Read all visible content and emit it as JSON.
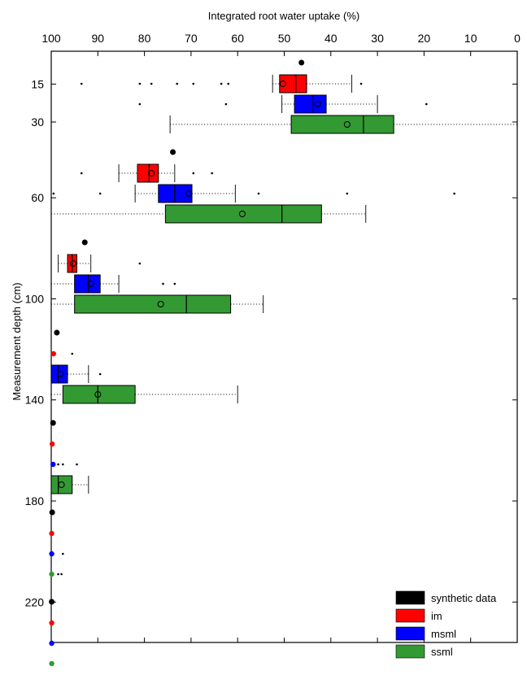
{
  "chart_data": {
    "type": "boxplot",
    "title": "",
    "xlabel": "Integrated root water uptake (%)",
    "ylabel": "Measurement depth (cm)",
    "x_axis_position": "top",
    "x_reversed": true,
    "xlim": [
      100,
      0
    ],
    "ylim": [
      236,
      2
    ],
    "x_ticks": [
      100,
      90,
      80,
      70,
      60,
      50,
      40,
      30,
      20,
      10,
      0
    ],
    "y_ticks": [
      15,
      30,
      60,
      100,
      140,
      180,
      220
    ],
    "legend_position": "bottom-right",
    "series": [
      {
        "name": "synthetic data",
        "color": "#000000"
      },
      {
        "name": "im",
        "color": "#ff0000"
      },
      {
        "name": "msml",
        "color": "#0000ff"
      },
      {
        "name": "ssml",
        "color": "#339933"
      }
    ],
    "groups": [
      {
        "depth": "15",
        "synthetic": 46.3,
        "boxes": [
          {
            "series": "im",
            "q1": 45.2,
            "median": 47.5,
            "q3": 51.0,
            "mean": 50.3,
            "whisker_low": 35.5,
            "whisker_high": 52.5,
            "outliers": [
              93.5,
              81,
              78.5,
              73,
              69.5,
              63.5,
              62,
              33.5
            ]
          },
          {
            "series": "msml",
            "q1": 41.0,
            "median": 43.8,
            "q3": 47.8,
            "mean": 42.8,
            "whisker_low": 30.0,
            "whisker_high": 50.5,
            "outliers": [
              81,
              62.5,
              19.5
            ]
          },
          {
            "series": "ssml",
            "q1": 26.5,
            "median": 33.0,
            "q3": 48.5,
            "mean": 36.5,
            "whisker_low": 0.0,
            "whisker_high": 74.5,
            "outliers": []
          }
        ]
      },
      {
        "depth": "30",
        "synthetic": 73.9,
        "boxes": [
          {
            "series": "im",
            "q1": 77.0,
            "median": 79.0,
            "q3": 81.5,
            "mean": 78.5,
            "whisker_low": 73.5,
            "whisker_high": 85.5,
            "outliers": [
              93.5,
              69.5,
              65.5
            ]
          },
          {
            "series": "msml",
            "q1": 69.8,
            "median": 73.5,
            "q3": 77.0,
            "mean": 70.5,
            "whisker_low": 60.5,
            "whisker_high": 82.0,
            "outliers": [
              99.5,
              89.5,
              55.5,
              36.5,
              13.5
            ]
          },
          {
            "series": "ssml",
            "q1": 42.0,
            "median": 50.5,
            "q3": 75.5,
            "mean": 59.0,
            "whisker_low": 32.5,
            "whisker_high": 100.0,
            "outliers": []
          }
        ]
      },
      {
        "depth": "60",
        "synthetic": 92.8,
        "boxes": [
          {
            "series": "im",
            "q1": 94.5,
            "median": 95.5,
            "q3": 96.5,
            "mean": 95.3,
            "whisker_low": 91.5,
            "whisker_high": 98.5,
            "outliers": [
              81
            ]
          },
          {
            "series": "msml",
            "q1": 89.5,
            "median": 92.0,
            "q3": 95.0,
            "mean": 91.5,
            "whisker_low": 85.5,
            "whisker_high": 100.0,
            "outliers": [
              76,
              73.5
            ]
          },
          {
            "series": "ssml",
            "q1": 61.5,
            "median": 71.0,
            "q3": 95.0,
            "mean": 76.5,
            "whisker_low": 54.5,
            "whisker_high": 100.0,
            "outliers": []
          }
        ]
      },
      {
        "depth": "100",
        "synthetic": 98.8,
        "boxes": [
          {
            "series": "im",
            "q1": 99.2,
            "median": 99.5,
            "q3": 99.8,
            "mean": 99.5,
            "whisker_low": 99.0,
            "whisker_high": 100.0,
            "outliers": [
              95.5
            ]
          },
          {
            "series": "msml",
            "q1": 96.5,
            "median": 98.5,
            "q3": 100.0,
            "mean": 98.0,
            "whisker_low": 92.0,
            "whisker_high": 100.0,
            "outliers": [
              89.5
            ]
          },
          {
            "series": "ssml",
            "q1": 82.0,
            "median": 90.0,
            "q3": 97.5,
            "mean": 90.0,
            "whisker_low": 60.0,
            "whisker_high": 100.0,
            "outliers": []
          }
        ]
      },
      {
        "depth": "140",
        "synthetic": 99.6,
        "boxes": [
          {
            "series": "im",
            "q1": 99.7,
            "median": 99.8,
            "q3": 99.9,
            "mean": 99.8,
            "whisker_low": 99.5,
            "whisker_high": 100.0,
            "outliers": []
          },
          {
            "series": "msml",
            "q1": 99.4,
            "median": 99.6,
            "q3": 99.8,
            "mean": 99.6,
            "whisker_low": 99.0,
            "whisker_high": 100.0,
            "outliers": [
              98.5,
              97.5,
              94.5
            ]
          },
          {
            "series": "ssml",
            "q1": 95.5,
            "median": 98.5,
            "q3": 100.0,
            "mean": 97.8,
            "whisker_low": 92.0,
            "whisker_high": 100.0,
            "outliers": []
          }
        ]
      },
      {
        "depth": "180",
        "synthetic": 99.8,
        "boxes": [
          {
            "series": "im",
            "q1": 99.8,
            "median": 99.9,
            "q3": 100.0,
            "mean": 99.9,
            "whisker_low": 99.6,
            "whisker_high": 100.0,
            "outliers": []
          },
          {
            "series": "msml",
            "q1": 99.8,
            "median": 99.9,
            "q3": 100.0,
            "mean": 99.9,
            "whisker_low": 99.6,
            "whisker_high": 100.0,
            "outliers": [
              97.5
            ]
          },
          {
            "series": "ssml",
            "q1": 99.8,
            "median": 99.9,
            "q3": 100.0,
            "mean": 99.9,
            "whisker_low": 99.6,
            "whisker_high": 100.0,
            "outliers": [
              98.5,
              97.8
            ]
          }
        ]
      },
      {
        "depth": "220",
        "synthetic": 99.9,
        "boxes": [
          {
            "series": "im",
            "q1": 99.8,
            "median": 99.9,
            "q3": 100.0,
            "mean": 99.9,
            "whisker_low": 99.6,
            "whisker_high": 100.0,
            "outliers": []
          },
          {
            "series": "msml",
            "q1": 99.8,
            "median": 99.9,
            "q3": 100.0,
            "mean": 99.9,
            "whisker_low": 99.6,
            "whisker_high": 100.0,
            "outliers": []
          },
          {
            "series": "ssml",
            "q1": 99.8,
            "median": 99.9,
            "q3": 100.0,
            "mean": 99.9,
            "whisker_low": 99.6,
            "whisker_high": 100.0,
            "outliers": []
          }
        ]
      }
    ]
  }
}
